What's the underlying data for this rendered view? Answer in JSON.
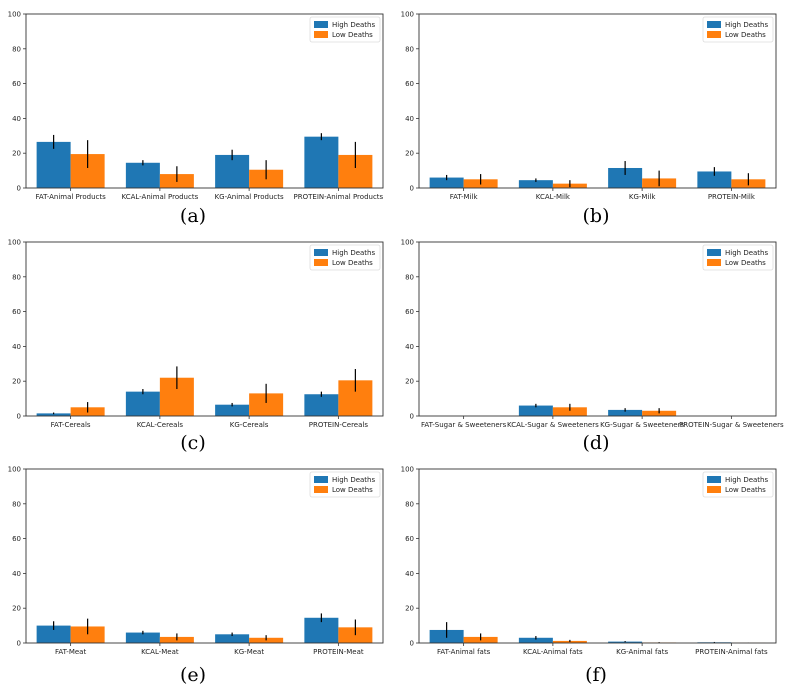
{
  "legend": [
    "High Deaths",
    "Low Deaths"
  ],
  "colors": {
    "high": "#1f77b4",
    "low": "#ff7f0e",
    "error": "#000000"
  },
  "chart_data": [
    {
      "type": "bar",
      "caption": "(a)",
      "categories": [
        "FAT-Animal Products",
        "KCAL-Animal Products",
        "KG-Animal Products",
        "PROTEIN-Animal Products"
      ],
      "yticks": [
        "0",
        "20",
        "40",
        "60",
        "80",
        "100"
      ],
      "ylim": [
        0,
        100
      ],
      "legend_position": "top-right",
      "series": [
        {
          "name": "High Deaths",
          "values": [
            26.5,
            14.5,
            19,
            29.5
          ],
          "errors": [
            4,
            1.5,
            3,
            2
          ]
        },
        {
          "name": "Low Deaths",
          "values": [
            19.5,
            8,
            10.5,
            19
          ],
          "errors": [
            8,
            4.5,
            5.5,
            7.5
          ]
        }
      ]
    },
    {
      "type": "bar",
      "caption": "(b)",
      "categories": [
        "FAT-Milk",
        "KCAL-Milk",
        "KG-Milk",
        "PROTEIN-Milk"
      ],
      "yticks": [
        "0",
        "20",
        "40",
        "60",
        "80",
        "100"
      ],
      "ylim": [
        0,
        100
      ],
      "legend_position": "top-right",
      "series": [
        {
          "name": "High Deaths",
          "values": [
            6,
            4.5,
            11.5,
            9.5
          ],
          "errors": [
            1.5,
            1,
            4,
            2.5
          ]
        },
        {
          "name": "Low Deaths",
          "values": [
            5,
            2.5,
            5.5,
            5
          ],
          "errors": [
            3,
            2,
            4.5,
            3.5
          ]
        }
      ]
    },
    {
      "type": "bar",
      "caption": "(c)",
      "categories": [
        "FAT-Cereals",
        "KCAL-Cereals",
        "KG-Cereals",
        "PROTEIN-Cereals"
      ],
      "yticks": [
        "0",
        "20",
        "40",
        "60",
        "80",
        "100"
      ],
      "ylim": [
        0,
        100
      ],
      "legend_position": "top-right",
      "series": [
        {
          "name": "High Deaths",
          "values": [
            1.5,
            14,
            6.5,
            12.5
          ],
          "errors": [
            0.5,
            1.5,
            1,
            1.5
          ]
        },
        {
          "name": "Low Deaths",
          "values": [
            5,
            22,
            13,
            20.5
          ],
          "errors": [
            3,
            6.5,
            5.5,
            6.5
          ]
        }
      ]
    },
    {
      "type": "bar",
      "caption": "(d)",
      "categories": [
        "FAT-Sugar & Sweeteners",
        "KCAL-Sugar & Sweeteners",
        "KG-Sugar & Sweeteners",
        "PROTEIN-Sugar & Sweeteners"
      ],
      "yticks": [
        "0",
        "20",
        "40",
        "60",
        "80",
        "100"
      ],
      "ylim": [
        0,
        100
      ],
      "legend_position": "top-right",
      "series": [
        {
          "name": "High Deaths",
          "values": [
            0,
            6,
            3.5,
            0
          ],
          "errors": [
            0,
            1,
            1,
            0
          ]
        },
        {
          "name": "Low Deaths",
          "values": [
            0,
            5,
            3,
            0
          ],
          "errors": [
            0,
            2,
            1.5,
            0
          ]
        }
      ]
    },
    {
      "type": "bar",
      "caption": "(e)",
      "categories": [
        "FAT-Meat",
        "KCAL-Meat",
        "KG-Meat",
        "PROTEIN-Meat"
      ],
      "yticks": [
        "0",
        "20",
        "40",
        "60",
        "80",
        "100"
      ],
      "ylim": [
        0,
        100
      ],
      "legend_position": "top-right",
      "series": [
        {
          "name": "High Deaths",
          "values": [
            10,
            6,
            5,
            14.5
          ],
          "errors": [
            2.5,
            1,
            1,
            2.5
          ]
        },
        {
          "name": "Low Deaths",
          "values": [
            9.5,
            3.5,
            3,
            9
          ],
          "errors": [
            4.5,
            2,
            1.5,
            4.5
          ]
        }
      ]
    },
    {
      "type": "bar",
      "caption": "(f)",
      "categories": [
        "FAT-Animal fats",
        "KCAL-Animal fats",
        "KG-Animal fats",
        "PROTEIN-Animal fats"
      ],
      "yticks": [
        "0",
        "20",
        "40",
        "60",
        "80",
        "100"
      ],
      "ylim": [
        0,
        100
      ],
      "legend_position": "top-right",
      "series": [
        {
          "name": "High Deaths",
          "values": [
            7.5,
            3,
            0.8,
            0.4
          ],
          "errors": [
            4.5,
            1,
            0.3,
            0.2
          ]
        },
        {
          "name": "Low Deaths",
          "values": [
            3.5,
            1.2,
            0.3,
            0.1
          ],
          "errors": [
            2,
            0.6,
            0.2,
            0.1
          ]
        }
      ]
    }
  ]
}
